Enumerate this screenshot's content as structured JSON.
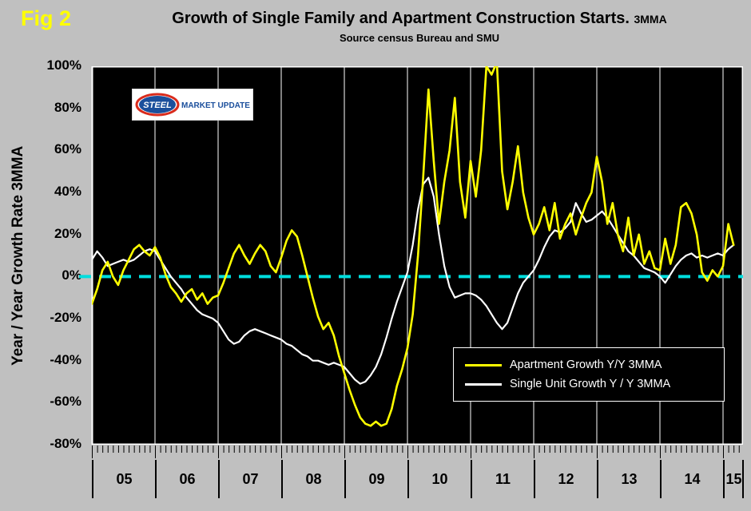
{
  "fig_label": "Fig 2",
  "title": "Growth of Single Family and Apartment Construction Starts.",
  "title_suffix": "3MMA",
  "subtitle": "Source census Bureau and SMU",
  "y_axis_label": "Year / Year Growth Rate 3MMA",
  "logo": {
    "steel": "STEEL",
    "market_update": "MARKET UPDATE"
  },
  "legend": [
    {
      "label": "Apartment Growth Y/Y 3MMA",
      "color": "#ffff00"
    },
    {
      "label": "Single Unit Growth Y / Y 3MMA",
      "color": "#ffffff"
    }
  ],
  "chart_data": {
    "type": "line",
    "title": "Growth of Single Family and Apartment Construction Starts. 3MMA",
    "subtitle": "Source census Bureau and SMU",
    "ylabel": "Year / Year Growth Rate 3MMA",
    "ylim": [
      -80,
      100
    ],
    "y_ticks": [
      100,
      80,
      60,
      40,
      20,
      0,
      -20,
      -40,
      -60,
      -80
    ],
    "y_tick_labels": [
      "100%",
      "80%",
      "60%",
      "40%",
      "20%",
      "0%",
      "-20%",
      "-40%",
      "-60%",
      "-80%"
    ],
    "x_unit": "monthly",
    "x_start": "2005-01",
    "x_end": "2015-03",
    "x_tick_labels": [
      "05",
      "06",
      "07",
      "08",
      "09",
      "10",
      "11",
      "12",
      "13",
      "14",
      "15"
    ],
    "grid": "vertical-year-gridlines",
    "legend_position": "lower-right-inside",
    "zero_line_color": "#00dede",
    "background": {
      "outer": "#c0c0c0",
      "plot": "#000000"
    },
    "series": [
      {
        "name": "Apartment Growth Y/Y 3MMA",
        "color": "#ffff00",
        "width": 2.6,
        "values": [
          -13,
          -6,
          3,
          7,
          0,
          -4,
          3,
          8,
          13,
          15,
          12,
          10,
          14,
          9,
          1,
          -5,
          -8,
          -12,
          -8,
          -6,
          -11,
          -8,
          -13,
          -10,
          -9,
          -3,
          4,
          11,
          15,
          10,
          6,
          11,
          15,
          12,
          5,
          2,
          9,
          17,
          22,
          19,
          10,
          0,
          -10,
          -19,
          -25,
          -22,
          -28,
          -38,
          -46,
          -54,
          -61,
          -67,
          -70,
          -71,
          -69,
          -71,
          -70,
          -63,
          -52,
          -44,
          -34,
          -18,
          10,
          48,
          89,
          55,
          25,
          45,
          60,
          85,
          45,
          28,
          55,
          38,
          60,
          100,
          96,
          102,
          50,
          32,
          45,
          62,
          40,
          28,
          20,
          25,
          33,
          22,
          35,
          18,
          25,
          30,
          20,
          28,
          35,
          40,
          57,
          45,
          25,
          35,
          20,
          12,
          28,
          10,
          20,
          6,
          12,
          4,
          3,
          18,
          6,
          15,
          33,
          35,
          30,
          20,
          2,
          -2,
          3,
          0,
          5,
          25,
          15
        ]
      },
      {
        "name": "Single Unit Growth Y / Y 3MMA",
        "color": "#ffffff",
        "width": 2.2,
        "values": [
          8,
          12,
          9,
          5,
          6,
          7,
          8,
          7,
          8,
          10,
          12,
          13,
          12,
          8,
          4,
          0,
          -3,
          -6,
          -10,
          -13,
          -16,
          -18,
          -19,
          -20,
          -22,
          -26,
          -30,
          -32,
          -31,
          -28,
          -26,
          -25,
          -26,
          -27,
          -28,
          -29,
          -30,
          -32,
          -33,
          -35,
          -37,
          -38,
          -40,
          -40,
          -41,
          -42,
          -41,
          -42,
          -43,
          -46,
          -49,
          -51,
          -50,
          -47,
          -43,
          -37,
          -29,
          -20,
          -12,
          -5,
          2,
          15,
          32,
          44,
          47,
          38,
          20,
          5,
          -5,
          -10,
          -9,
          -8,
          -8,
          -9,
          -11,
          -14,
          -18,
          -22,
          -25,
          -22,
          -15,
          -8,
          -3,
          0,
          3,
          8,
          14,
          19,
          22,
          21,
          23,
          26,
          35,
          30,
          26,
          27,
          29,
          31,
          28,
          24,
          20,
          16,
          12,
          10,
          7,
          4,
          3,
          2,
          0,
          -3,
          1,
          5,
          8,
          10,
          11,
          9,
          10,
          9,
          10,
          11,
          10,
          13,
          15
        ]
      }
    ]
  }
}
